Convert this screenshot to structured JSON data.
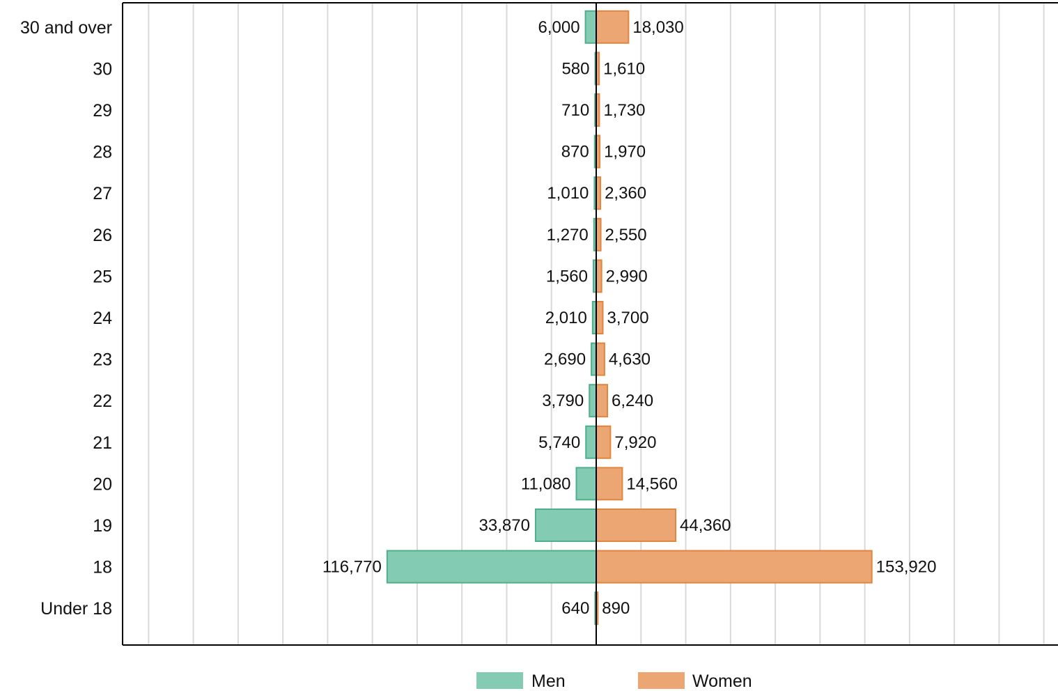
{
  "chart_data": {
    "type": "bar",
    "orientation": "horizontal",
    "layout": "population-pyramid",
    "title": "",
    "xlabel": "",
    "ylabel": "",
    "grid": true,
    "legend_position": "bottom",
    "categories": [
      "30 and over",
      "30",
      "29",
      "28",
      "27",
      "26",
      "25",
      "24",
      "23",
      "22",
      "21",
      "20",
      "19",
      "18",
      "Under 18"
    ],
    "series": [
      {
        "name": "Men",
        "side": "left",
        "color": "#83cbb3",
        "border_color": "#4fae8b",
        "values": [
          6000,
          580,
          710,
          870,
          1010,
          1270,
          1560,
          2010,
          2690,
          3790,
          5740,
          11080,
          33870,
          116770,
          640
        ],
        "labels": [
          "6,000",
          "580",
          "710",
          "870",
          "1,010",
          "1,270",
          "1,560",
          "2,010",
          "2,690",
          "3,790",
          "5,740",
          "11,080",
          "33,870",
          "116,770",
          "640"
        ]
      },
      {
        "name": "Women",
        "side": "right",
        "color": "#eca674",
        "border_color": "#e0863f",
        "values": [
          18030,
          1610,
          1730,
          1970,
          2360,
          2550,
          2990,
          3700,
          4630,
          6240,
          7920,
          14560,
          44360,
          153920,
          890
        ],
        "labels": [
          "18,030",
          "1,610",
          "1,730",
          "1,970",
          "2,360",
          "2,550",
          "2,990",
          "3,700",
          "4,630",
          "6,240",
          "7,920",
          "14,560",
          "44,360",
          "153,920",
          "890"
        ]
      }
    ],
    "xlim": [
      -265000,
      260000
    ]
  }
}
